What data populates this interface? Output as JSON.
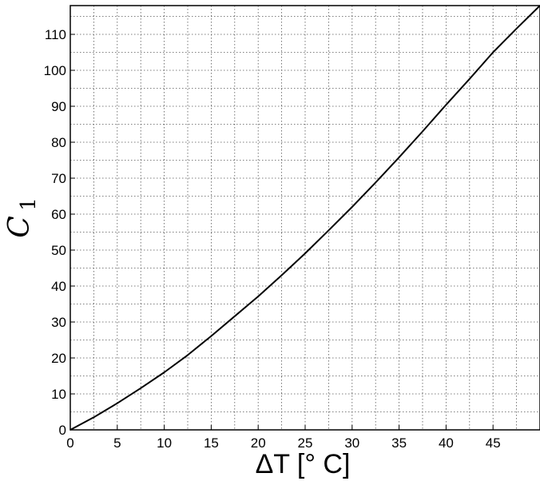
{
  "chart_data": {
    "type": "line",
    "title": "",
    "xlabel": "ΔT [° C]",
    "ylabel_main": "C",
    "ylabel_sub": "1",
    "xlim": [
      0,
      50
    ],
    "ylim": [
      0,
      118
    ],
    "xticks": [
      0,
      5,
      10,
      15,
      20,
      25,
      30,
      35,
      40,
      45
    ],
    "yticks": [
      0,
      10,
      20,
      30,
      40,
      50,
      60,
      70,
      80,
      90,
      100,
      110
    ],
    "x_minor_step": 2.5,
    "y_minor_step": 5,
    "grid": true,
    "series": [
      {
        "color": "#000000",
        "x": [
          0,
          2.5,
          5,
          7.5,
          10,
          12.5,
          15,
          17.5,
          20,
          22.5,
          25,
          27.5,
          30,
          32.5,
          35,
          37.5,
          40,
          42.5,
          45,
          47.5,
          50
        ],
        "y": [
          0,
          3.5,
          7.4,
          11.6,
          16.0,
          20.8,
          26.1,
          31.6,
          37.1,
          43.0,
          49.1,
          55.5,
          62.0,
          68.8,
          75.8,
          83.0,
          90.4,
          97.6,
          105.0,
          111.6,
          118.0
        ]
      }
    ]
  }
}
